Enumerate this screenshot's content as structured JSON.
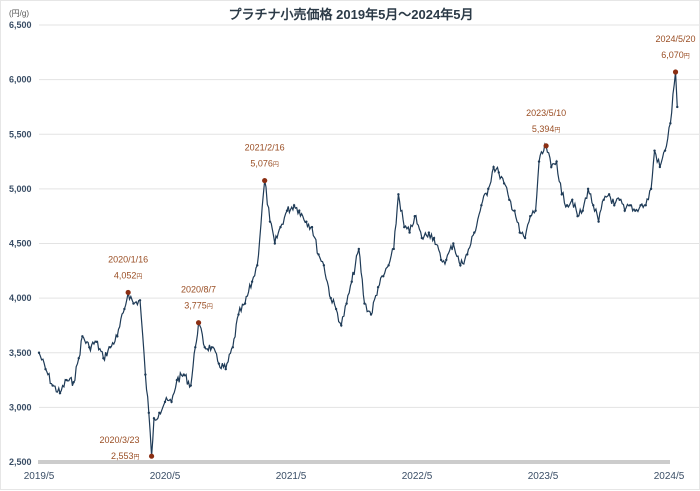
{
  "chart_data": {
    "type": "line",
    "title": "プラチナ小売価格 2019年5月～2024年5月",
    "ylabel": "(円/g)",
    "xlabel": "",
    "ylim": [
      2500,
      6500
    ],
    "yticks": [
      2500,
      3000,
      3500,
      4000,
      4500,
      5000,
      5500,
      6000,
      6500
    ],
    "ytick_labels": [
      "2,500",
      "3,000",
      "3,500",
      "4,000",
      "4,500",
      "5,000",
      "5,500",
      "6,000",
      "6,500"
    ],
    "xticks": [
      "2019/5",
      "2020/5",
      "2021/5",
      "2022/5",
      "2023/5",
      "2024/5"
    ],
    "grid": true,
    "colors": {
      "line": "#1f3b57",
      "annotation": "#9a4e24",
      "marker": "#8b2e12",
      "grid": "#e3e3e3",
      "baseline": "#cccccc"
    },
    "series": [
      {
        "name": "プラチナ小売価格",
        "points": [
          [
            "2019/5/1",
            3500
          ],
          [
            "2019/5/20",
            3350
          ],
          [
            "2019/6/10",
            3200
          ],
          [
            "2019/7/1",
            3130
          ],
          [
            "2019/7/20",
            3250
          ],
          [
            "2019/8/10",
            3230
          ],
          [
            "2019/8/25",
            3450
          ],
          [
            "2019/9/5",
            3650
          ],
          [
            "2019/9/25",
            3550
          ],
          [
            "2019/10/15",
            3600
          ],
          [
            "2019/11/5",
            3450
          ],
          [
            "2019/11/25",
            3550
          ],
          [
            "2019/12/15",
            3650
          ],
          [
            "2020/1/5",
            3900
          ],
          [
            "2020/1/16",
            4052
          ],
          [
            "2020/2/1",
            3950
          ],
          [
            "2020/2/20",
            3980
          ],
          [
            "2020/3/5",
            3300
          ],
          [
            "2020/3/15",
            2950
          ],
          [
            "2020/3/23",
            2553
          ],
          [
            "2020/3/30",
            2900
          ],
          [
            "2020/4/15",
            2950
          ],
          [
            "2020/5/1",
            3050
          ],
          [
            "2020/5/20",
            3050
          ],
          [
            "2020/6/5",
            3250
          ],
          [
            "2020/6/25",
            3300
          ],
          [
            "2020/7/15",
            3200
          ],
          [
            "2020/7/28",
            3550
          ],
          [
            "2020/8/7",
            3775
          ],
          [
            "2020/8/25",
            3550
          ],
          [
            "2020/9/15",
            3550
          ],
          [
            "2020/10/5",
            3400
          ],
          [
            "2020/10/25",
            3350
          ],
          [
            "2020/11/15",
            3550
          ],
          [
            "2020/12/1",
            3850
          ],
          [
            "2020/12/20",
            3950
          ],
          [
            "2021/1/10",
            4150
          ],
          [
            "2021/1/25",
            4300
          ],
          [
            "2021/2/16",
            5076
          ],
          [
            "2021/3/1",
            4700
          ],
          [
            "2021/3/15",
            4500
          ],
          [
            "2021/4/1",
            4650
          ],
          [
            "2021/4/20",
            4800
          ],
          [
            "2021/5/10",
            4850
          ],
          [
            "2021/5/25",
            4800
          ],
          [
            "2021/6/15",
            4700
          ],
          [
            "2021/7/1",
            4650
          ],
          [
            "2021/7/20",
            4400
          ],
          [
            "2021/8/5",
            4300
          ],
          [
            "2021/8/25",
            4000
          ],
          [
            "2021/9/10",
            3900
          ],
          [
            "2021/9/25",
            3750
          ],
          [
            "2021/10/10",
            3950
          ],
          [
            "2021/10/25",
            4150
          ],
          [
            "2021/11/15",
            4450
          ],
          [
            "2021/12/1",
            3950
          ],
          [
            "2021/12/20",
            3850
          ],
          [
            "2022/1/10",
            4100
          ],
          [
            "2022/1/25",
            4200
          ],
          [
            "2022/2/10",
            4300
          ],
          [
            "2022/2/25",
            4450
          ],
          [
            "2022/3/8",
            4950
          ],
          [
            "2022/3/25",
            4650
          ],
          [
            "2022/4/10",
            4600
          ],
          [
            "2022/4/25",
            4750
          ],
          [
            "2022/5/15",
            4550
          ],
          [
            "2022/6/5",
            4600
          ],
          [
            "2022/6/20",
            4550
          ],
          [
            "2022/7/10",
            4350
          ],
          [
            "2022/7/25",
            4350
          ],
          [
            "2022/8/15",
            4500
          ],
          [
            "2022/9/5",
            4300
          ],
          [
            "2022/9/25",
            4400
          ],
          [
            "2022/10/15",
            4600
          ],
          [
            "2022/11/5",
            4850
          ],
          [
            "2022/11/25",
            5000
          ],
          [
            "2022/12/10",
            5200
          ],
          [
            "2022/12/25",
            5150
          ],
          [
            "2023/1/10",
            5050
          ],
          [
            "2023/1/25",
            4900
          ],
          [
            "2023/2/10",
            4800
          ],
          [
            "2023/2/25",
            4600
          ],
          [
            "2023/3/10",
            4550
          ],
          [
            "2023/3/25",
            4750
          ],
          [
            "2023/4/10",
            4800
          ],
          [
            "2023/4/20",
            5250
          ],
          [
            "2023/5/10",
            5394
          ],
          [
            "2023/5/25",
            5200
          ],
          [
            "2023/6/10",
            5250
          ],
          [
            "2023/6/25",
            4950
          ],
          [
            "2023/7/10",
            4850
          ],
          [
            "2023/7/25",
            4900
          ],
          [
            "2023/8/10",
            4750
          ],
          [
            "2023/8/25",
            4800
          ],
          [
            "2023/9/10",
            5000
          ],
          [
            "2023/9/25",
            4850
          ],
          [
            "2023/10/10",
            4700
          ],
          [
            "2023/10/25",
            4900
          ],
          [
            "2023/11/10",
            4950
          ],
          [
            "2023/11/25",
            4850
          ],
          [
            "2023/12/10",
            4900
          ],
          [
            "2023/12/25",
            4800
          ],
          [
            "2024/1/10",
            4850
          ],
          [
            "2024/1/25",
            4800
          ],
          [
            "2024/2/10",
            4850
          ],
          [
            "2024/2/25",
            4850
          ],
          [
            "2024/3/10",
            5000
          ],
          [
            "2024/3/20",
            5350
          ],
          [
            "2024/4/5",
            5200
          ],
          [
            "2024/4/20",
            5350
          ],
          [
            "2024/5/5",
            5600
          ],
          [
            "2024/5/20",
            6070
          ],
          [
            "2024/5/25",
            5750
          ]
        ]
      }
    ],
    "annotations": [
      {
        "date": "2020/1/16",
        "value": 4052,
        "label_date": "2020/1/16",
        "label_value": "4,052",
        "unit": "円",
        "pos": "above"
      },
      {
        "date": "2020/3/23",
        "value": 2553,
        "label_date": "2020/3/23",
        "label_value": "2,553",
        "unit": "円",
        "pos": "left"
      },
      {
        "date": "2020/8/7",
        "value": 3775,
        "label_date": "2020/8/7",
        "label_value": "3,775",
        "unit": "円",
        "pos": "above"
      },
      {
        "date": "2021/2/16",
        "value": 5076,
        "label_date": "2021/2/16",
        "label_value": "5,076",
        "unit": "円",
        "pos": "above"
      },
      {
        "date": "2023/5/10",
        "value": 5394,
        "label_date": "2023/5/10",
        "label_value": "5,394",
        "unit": "円",
        "pos": "above"
      },
      {
        "date": "2024/5/20",
        "value": 6070,
        "label_date": "2024/5/20",
        "label_value": "6,070",
        "unit": "円",
        "pos": "above"
      }
    ]
  }
}
